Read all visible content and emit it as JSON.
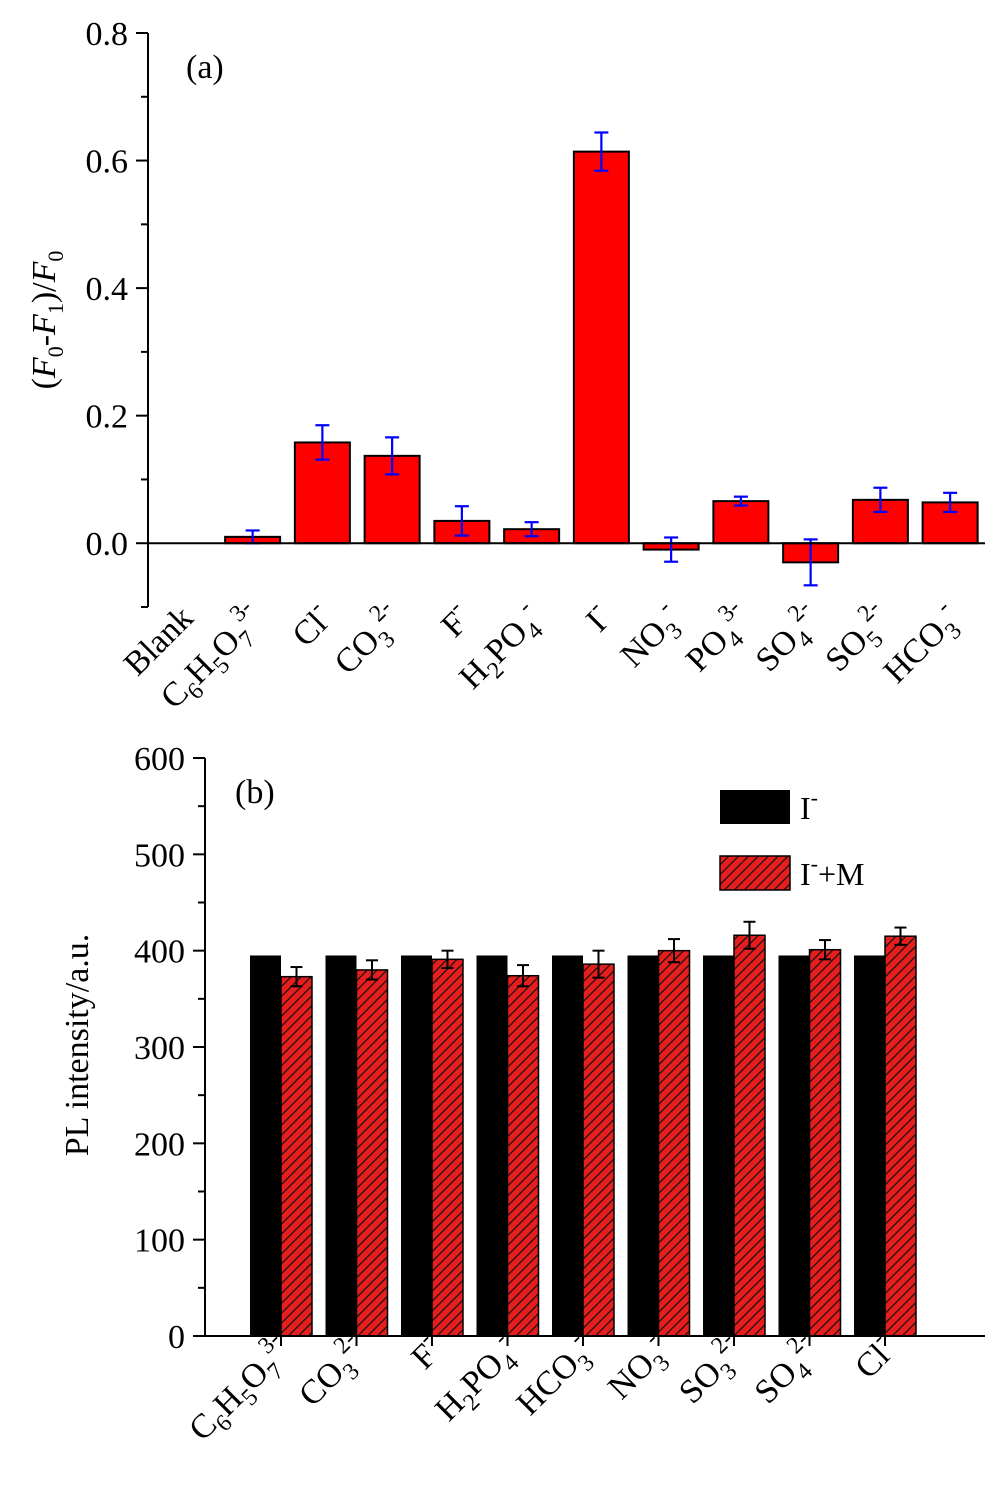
{
  "chart_data": [
    {
      "type": "bar",
      "panel_label": "(a)",
      "ylabel": "(F0-F1)/F0",
      "ylim": [
        -0.1,
        0.8
      ],
      "yticks": [
        "0.0",
        "0.2",
        "0.4",
        "0.6",
        "0.8"
      ],
      "categories": [
        "Blank",
        "C6H5O7 3-",
        "Cl-",
        "CO3 2-",
        "F-",
        "H2PO4 -",
        "I-",
        "NO3 -",
        "PO4 3-",
        "SO4 2-",
        "SO5 2-",
        "HCO3 -"
      ],
      "values": [
        0.0,
        0.01,
        0.158,
        0.137,
        0.035,
        0.022,
        0.614,
        -0.01,
        0.066,
        -0.03,
        0.068,
        0.064
      ],
      "errors": [
        0.0,
        0.01,
        0.027,
        0.029,
        0.023,
        0.011,
        0.03,
        0.019,
        0.007,
        0.036,
        0.019,
        0.015
      ],
      "bar_color": "#ff0000",
      "error_color": "#0000ff",
      "grid": false
    },
    {
      "type": "bar",
      "panel_label": "(b)",
      "ylabel": "PL intensity/a.u.",
      "ylim": [
        0,
        600
      ],
      "yticks": [
        "0",
        "100",
        "200",
        "300",
        "400",
        "500",
        "600"
      ],
      "categories": [
        "C6H5O7 3-",
        "CO3 2-",
        "F-",
        "H2PO4 -",
        "HCO3 -",
        "NO3 -",
        "SO3 2-",
        "SO4 2-",
        "Cl-"
      ],
      "series": [
        {
          "name": "I-",
          "values": [
            395,
            395,
            395,
            395,
            395,
            395,
            395,
            395,
            395
          ],
          "color": "#000000"
        },
        {
          "name": "I-+M",
          "values": [
            373,
            380,
            391,
            374,
            386,
            400,
            416,
            401,
            415
          ],
          "errors": [
            10,
            10,
            9,
            11,
            14,
            12,
            14,
            10,
            9
          ],
          "color": "#e61e1e",
          "pattern": "diagonal-hatch"
        }
      ],
      "legend_position": "top-right",
      "grid": false
    }
  ]
}
